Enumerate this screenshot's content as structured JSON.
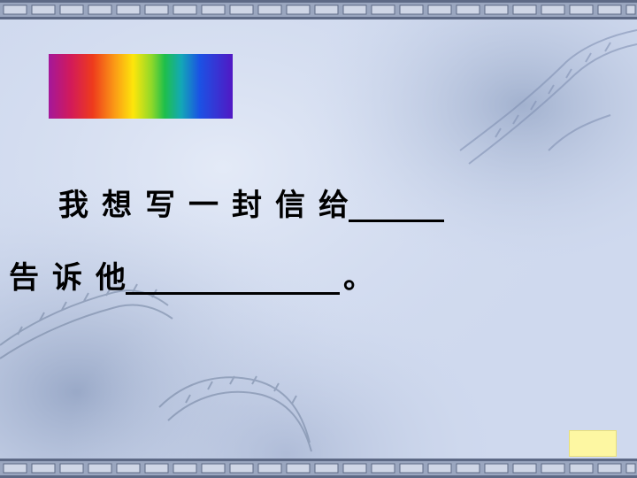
{
  "line1": {
    "chars": [
      "我",
      "想",
      "写",
      "一",
      "封",
      "信",
      "给"
    ]
  },
  "line2": {
    "chars": [
      "告",
      "诉",
      "他"
    ],
    "period": "。"
  },
  "colors": {
    "background": "#cfd9ee",
    "border_light": "#c4cde0",
    "border_dark": "#66728c",
    "nav_button": "#fdf7a2",
    "text": "#000000"
  }
}
